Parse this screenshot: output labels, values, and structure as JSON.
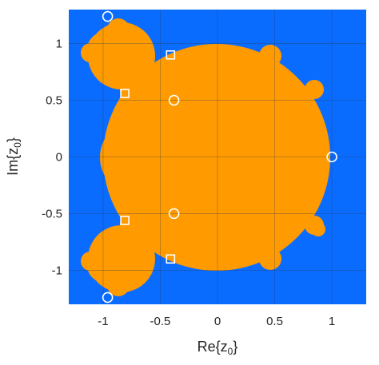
{
  "chart_data": {
    "type": "scatter",
    "title": "",
    "xlabel": {
      "base": "Re{z",
      "sub": "0",
      "end": "}"
    },
    "ylabel": {
      "base": "Im{z",
      "sub": "0",
      "end": "}"
    },
    "xlim": [
      -1.3,
      1.3
    ],
    "ylim": [
      -1.3,
      1.3
    ],
    "xticks": [
      -1,
      -0.5,
      0,
      0.5,
      1
    ],
    "yticks": [
      -1,
      -0.5,
      0,
      0.5,
      1
    ],
    "xtick_labels": [
      "-1",
      "-0.5",
      "0",
      "0.5",
      "1"
    ],
    "ytick_labels": [
      "-1",
      "-0.5",
      "0",
      "0.5",
      "1"
    ],
    "grid": true,
    "background_region_color": "#0a6cff",
    "filled_region_color": "#ff9a00",
    "marker_color": "#ffffff",
    "series": [
      {
        "marker": "circle",
        "points": [
          {
            "x": -0.96,
            "y": 1.24
          },
          {
            "x": -0.38,
            "y": 0.5
          },
          {
            "x": 1.0,
            "y": 0.0
          },
          {
            "x": -0.38,
            "y": -0.5
          },
          {
            "x": -0.96,
            "y": -1.24
          }
        ]
      },
      {
        "marker": "square",
        "points": [
          {
            "x": -0.41,
            "y": 0.9
          },
          {
            "x": -0.81,
            "y": 0.56
          },
          {
            "x": -0.81,
            "y": -0.56
          },
          {
            "x": -0.41,
            "y": -0.9
          }
        ]
      }
    ]
  }
}
